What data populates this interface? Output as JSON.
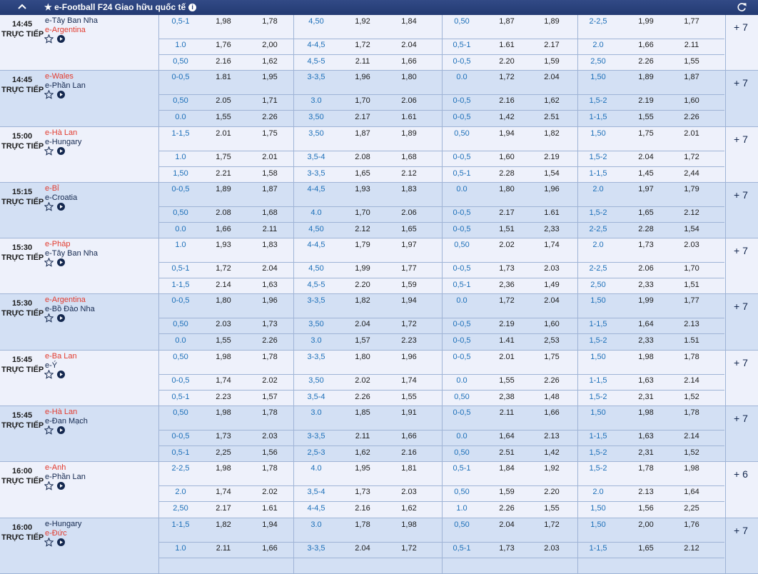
{
  "header": {
    "title": "★ e-Football F24 Giao hữu quốc tế",
    "info_icon": "info-icon",
    "collapse_icon": "chevron-up-icon",
    "refresh_icon": "refresh-icon"
  },
  "colors": {
    "header_bg": "#233a72",
    "red_team": "#e23b2e",
    "handicap_blue": "#1c6fb8",
    "row_light": "#eef1fb",
    "row_dark": "#d3e0f4"
  },
  "matches": [
    {
      "time": "14:45",
      "status": "TRỰC TIẾP",
      "team1": "e-Tây Ban Nha",
      "team1_color": "navy",
      "team2": "e-Argentina",
      "team2_color": "red",
      "more": "+ 7",
      "lines": [
        [
          "0,5-1",
          "1,98",
          "1,78",
          "4,50",
          "1,92",
          "1,84",
          "0,50",
          "1,87",
          "1,89",
          "2-2,5",
          "1,99",
          "1,77"
        ],
        [
          "1.0",
          "1,76",
          "2,00",
          "4-4,5",
          "1,72",
          "2.04",
          "0,5-1",
          "1.61",
          "2.17",
          "2.0",
          "1,66",
          "2.11"
        ],
        [
          "0,50",
          "2.16",
          "1,62",
          "4,5-5",
          "2.11",
          "1,66",
          "0-0,5",
          "2.20",
          "1,59",
          "2,50",
          "2.26",
          "1,55"
        ]
      ]
    },
    {
      "time": "14:45",
      "status": "TRỰC TIẾP",
      "team1": "e-Wales",
      "team1_color": "red",
      "team2": "e-Phần Lan",
      "team2_color": "navy",
      "more": "+ 7",
      "lines": [
        [
          "0-0,5",
          "1.81",
          "1,95",
          "3-3,5",
          "1,96",
          "1,80",
          "0.0",
          "1,72",
          "2.04",
          "1,50",
          "1,89",
          "1,87"
        ],
        [
          "0,50",
          "2.05",
          "1,71",
          "3.0",
          "1,70",
          "2.06",
          "0-0,5",
          "2.16",
          "1,62",
          "1,5-2",
          "2.19",
          "1,60"
        ],
        [
          "0.0",
          "1,55",
          "2.26",
          "3,50",
          "2.17",
          "1.61",
          "0-0,5",
          "1,42",
          "2.51",
          "1-1,5",
          "1,55",
          "2.26"
        ]
      ]
    },
    {
      "time": "15:00",
      "status": "TRỰC TIẾP",
      "team1": "e-Hà Lan",
      "team1_color": "red",
      "team2": "e-Hungary",
      "team2_color": "navy",
      "more": "+ 7",
      "lines": [
        [
          "1-1,5",
          "2.01",
          "1,75",
          "3,50",
          "1,87",
          "1,89",
          "0,50",
          "1,94",
          "1,82",
          "1,50",
          "1,75",
          "2.01"
        ],
        [
          "1.0",
          "1,75",
          "2.01",
          "3,5-4",
          "2.08",
          "1,68",
          "0-0,5",
          "1,60",
          "2.19",
          "1,5-2",
          "2.04",
          "1,72"
        ],
        [
          "1,50",
          "2.21",
          "1,58",
          "3-3,5",
          "1,65",
          "2.12",
          "0,5-1",
          "2.28",
          "1,54",
          "1-1,5",
          "1,45",
          "2,44"
        ]
      ]
    },
    {
      "time": "15:15",
      "status": "TRỰC TIẾP",
      "team1": "e-Bỉ",
      "team1_color": "red",
      "team2": "e-Croatia",
      "team2_color": "navy",
      "more": "+ 7",
      "lines": [
        [
          "0-0,5",
          "1,89",
          "1,87",
          "4-4,5",
          "1,93",
          "1,83",
          "0.0",
          "1,80",
          "1,96",
          "2.0",
          "1,97",
          "1,79"
        ],
        [
          "0,50",
          "2.08",
          "1,68",
          "4.0",
          "1,70",
          "2.06",
          "0-0,5",
          "2.17",
          "1.61",
          "1,5-2",
          "1,65",
          "2.12"
        ],
        [
          "0.0",
          "1,66",
          "2.11",
          "4,50",
          "2.12",
          "1,65",
          "0-0,5",
          "1,51",
          "2,33",
          "2-2,5",
          "2.28",
          "1,54"
        ]
      ]
    },
    {
      "time": "15:30",
      "status": "TRỰC TIẾP",
      "team1": "e-Pháp",
      "team1_color": "red",
      "team2": "e-Tây Ban Nha",
      "team2_color": "navy",
      "more": "+ 7",
      "lines": [
        [
          "1.0",
          "1,93",
          "1,83",
          "4-4,5",
          "1,79",
          "1,97",
          "0,50",
          "2.02",
          "1,74",
          "2.0",
          "1,73",
          "2.03"
        ],
        [
          "0,5-1",
          "1,72",
          "2.04",
          "4,50",
          "1,99",
          "1,77",
          "0-0,5",
          "1,73",
          "2.03",
          "2-2,5",
          "2.06",
          "1,70"
        ],
        [
          "1-1,5",
          "2.14",
          "1,63",
          "4,5-5",
          "2.20",
          "1,59",
          "0,5-1",
          "2,36",
          "1,49",
          "2,50",
          "2,33",
          "1,51"
        ]
      ]
    },
    {
      "time": "15:30",
      "status": "TRỰC TIẾP",
      "team1": "e-Argentina",
      "team1_color": "red",
      "team2": "e-Bồ Đào Nha",
      "team2_color": "navy",
      "more": "+ 7",
      "lines": [
        [
          "0-0,5",
          "1,80",
          "1,96",
          "3-3,5",
          "1,82",
          "1,94",
          "0.0",
          "1,72",
          "2.04",
          "1,50",
          "1,99",
          "1,77"
        ],
        [
          "0,50",
          "2.03",
          "1,73",
          "3,50",
          "2.04",
          "1,72",
          "0-0,5",
          "2.19",
          "1,60",
          "1-1,5",
          "1,64",
          "2.13"
        ],
        [
          "0.0",
          "1,55",
          "2.26",
          "3.0",
          "1,57",
          "2.23",
          "0-0,5",
          "1.41",
          "2,53",
          "1,5-2",
          "2,33",
          "1.51"
        ]
      ]
    },
    {
      "time": "15:45",
      "status": "TRỰC TIẾP",
      "team1": "e-Ba Lan",
      "team1_color": "red",
      "team2": "e-Ý",
      "team2_color": "navy",
      "more": "+ 7",
      "lines": [
        [
          "0,50",
          "1,98",
          "1,78",
          "3-3,5",
          "1,80",
          "1,96",
          "0-0,5",
          "2.01",
          "1,75",
          "1,50",
          "1,98",
          "1,78"
        ],
        [
          "0-0,5",
          "1,74",
          "2.02",
          "3,50",
          "2.02",
          "1,74",
          "0.0",
          "1,55",
          "2.26",
          "1-1,5",
          "1,63",
          "2.14"
        ],
        [
          "0,5-1",
          "2.23",
          "1,57",
          "3,5-4",
          "2.26",
          "1,55",
          "0,50",
          "2,38",
          "1,48",
          "1,5-2",
          "2,31",
          "1,52"
        ]
      ]
    },
    {
      "time": "15:45",
      "status": "TRỰC TIẾP",
      "team1": "e-Hà Lan",
      "team1_color": "red",
      "team2": "e-Đan Mạch",
      "team2_color": "navy",
      "more": "+ 7",
      "lines": [
        [
          "0,50",
          "1,98",
          "1,78",
          "3.0",
          "1,85",
          "1,91",
          "0-0,5",
          "2.11",
          "1,66",
          "1,50",
          "1,98",
          "1,78"
        ],
        [
          "0-0,5",
          "1,73",
          "2.03",
          "3-3,5",
          "2.11",
          "1,66",
          "0.0",
          "1,64",
          "2.13",
          "1-1,5",
          "1,63",
          "2.14"
        ],
        [
          "0,5-1",
          "2,25",
          "1,56",
          "2,5-3",
          "1,62",
          "2.16",
          "0,50",
          "2.51",
          "1,42",
          "1,5-2",
          "2,31",
          "1,52"
        ]
      ]
    },
    {
      "time": "16:00",
      "status": "TRỰC TIẾP",
      "team1": "e-Anh",
      "team1_color": "red",
      "team2": "e-Phần Lan",
      "team2_color": "navy",
      "more": "+ 6",
      "lines": [
        [
          "2-2,5",
          "1,98",
          "1,78",
          "4.0",
          "1,95",
          "1,81",
          "0,5-1",
          "1,84",
          "1,92",
          "1,5-2",
          "1,78",
          "1,98"
        ],
        [
          "2.0",
          "1,74",
          "2.02",
          "3,5-4",
          "1,73",
          "2.03",
          "0,50",
          "1,59",
          "2.20",
          "2.0",
          "2.13",
          "1,64"
        ],
        [
          "2,50",
          "2.17",
          "1.61",
          "4-4,5",
          "2.16",
          "1,62",
          "1.0",
          "2.26",
          "1,55",
          "1,50",
          "1,56",
          "2,25"
        ]
      ]
    },
    {
      "time": "16:00",
      "status": "TRỰC TIẾP",
      "team1": "e-Hungary",
      "team1_color": "navy",
      "team2": "e-Đức",
      "team2_color": "red",
      "more": "+ 7",
      "lines": [
        [
          "1-1,5",
          "1,82",
          "1,94",
          "3.0",
          "1,78",
          "1,98",
          "0,50",
          "2.04",
          "1,72",
          "1,50",
          "2,00",
          "1,76"
        ],
        [
          "1.0",
          "2.11",
          "1,66",
          "3-3,5",
          "2.04",
          "1,72",
          "0,5-1",
          "1,73",
          "2.03",
          "1-1,5",
          "1,65",
          "2.12"
        ],
        [
          "",
          "",
          "",
          "",
          "",
          "",
          "",
          "",
          "",
          "",
          "",
          ""
        ]
      ]
    }
  ]
}
